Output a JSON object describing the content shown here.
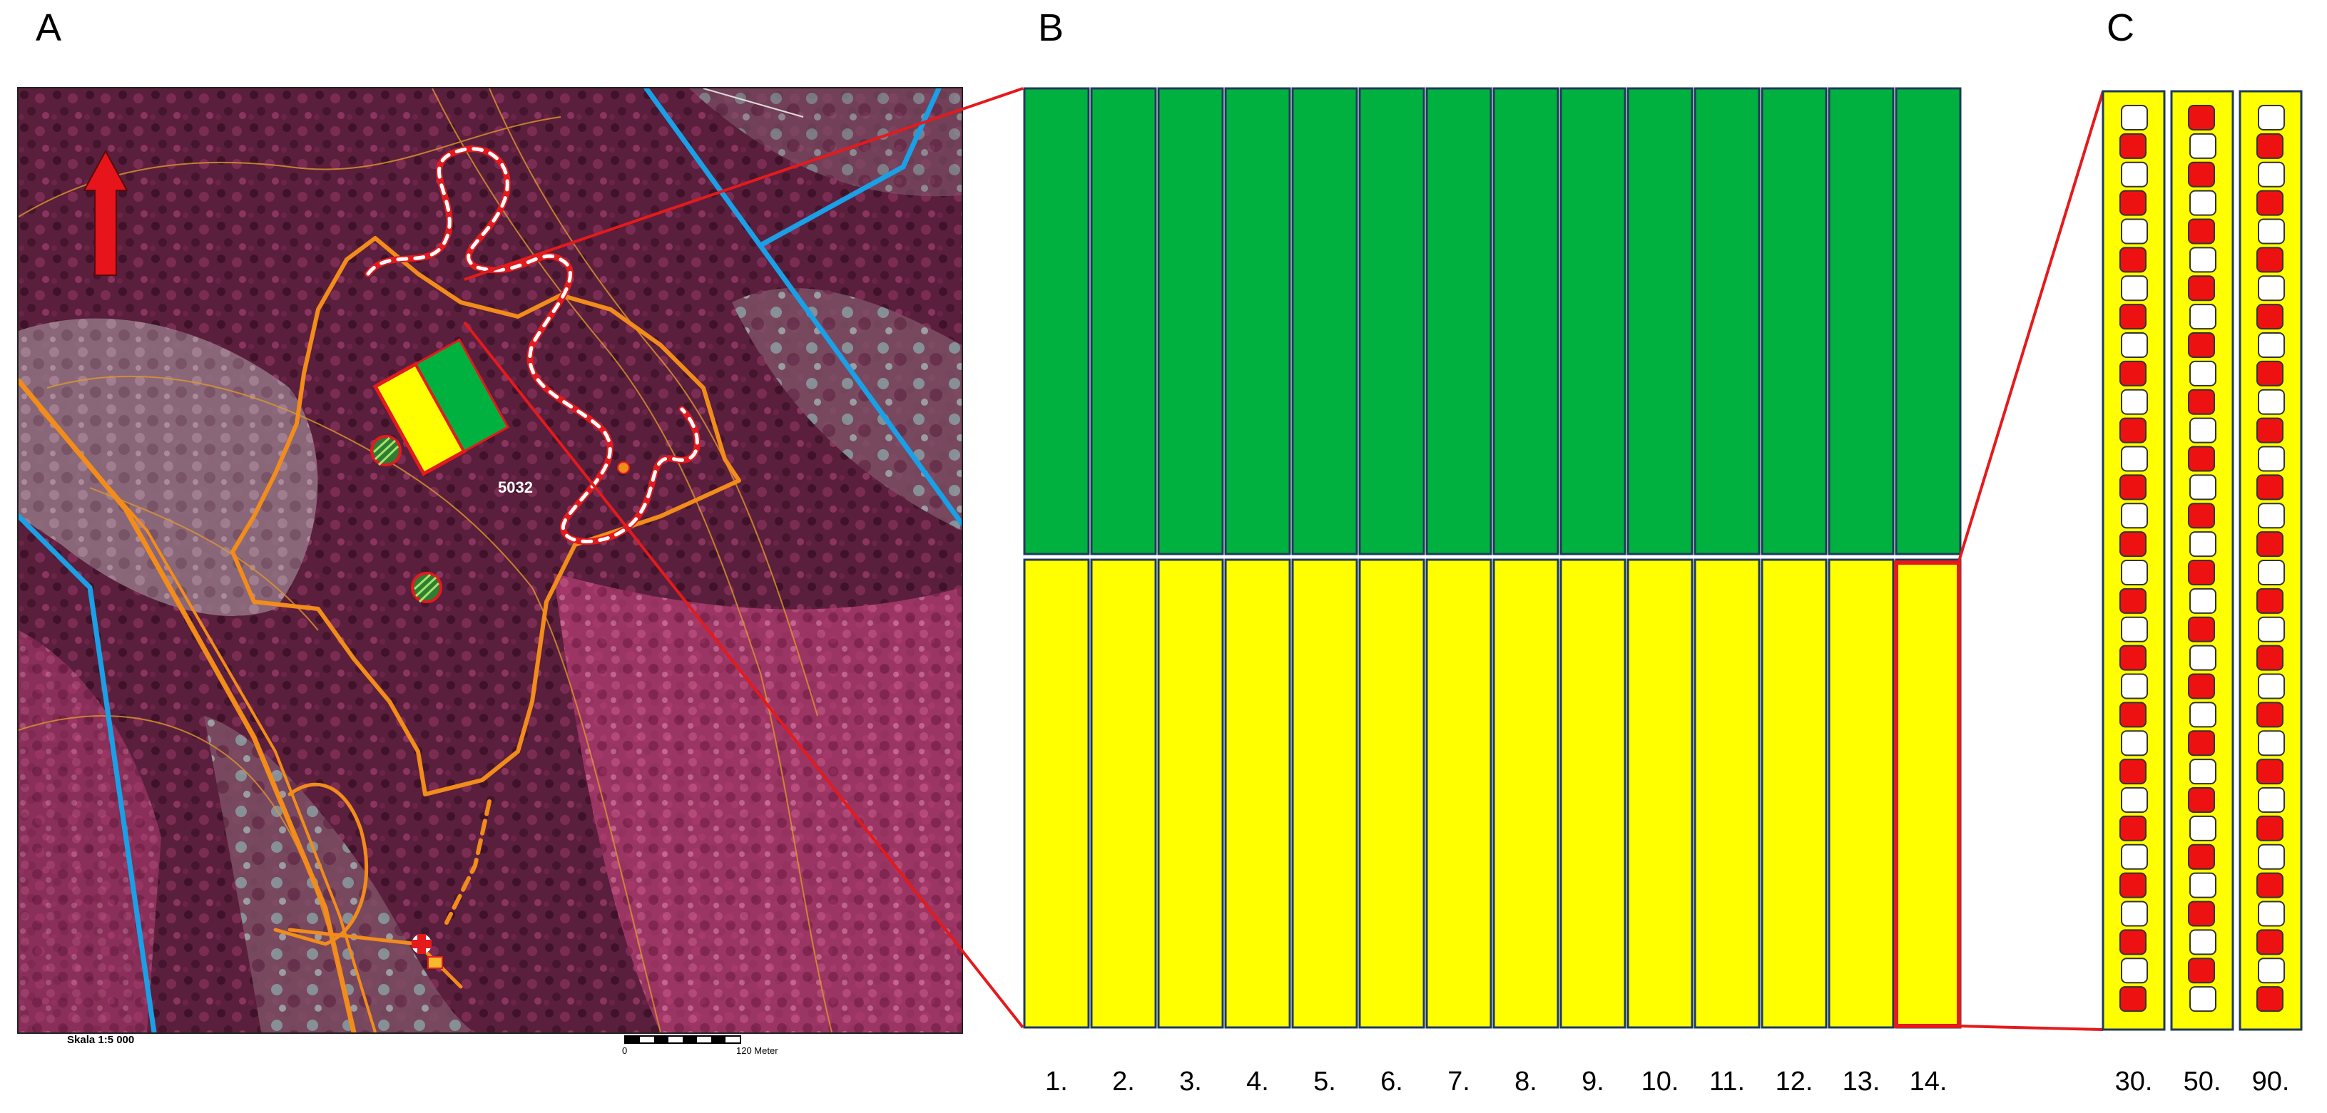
{
  "panels": {
    "a": "A",
    "b": "B",
    "c": "C"
  },
  "map": {
    "stand_id": "5032",
    "scale_text": "Skala   1:5 000",
    "scalebar_start": "0",
    "scalebar_end": "120 Meter",
    "north_arrow_color": "#e8141b"
  },
  "plot_grid": {
    "plot_labels": [
      "1.",
      "2.",
      "3.",
      "4.",
      "5.",
      "6.",
      "7.",
      "8.",
      "9.",
      "10.",
      "11.",
      "12.",
      "13.",
      "14."
    ],
    "upper_color": "#00b140",
    "lower_color": "#ffff00",
    "highlighted_plot": "14."
  },
  "subplots": {
    "labels": [
      "30.",
      "50.",
      "90."
    ],
    "fill_color": "#ffff00",
    "marker_red": "#ee1111",
    "marker_white": "#ffffff"
  },
  "colors": {
    "zoom_line": "#e41a1c",
    "stand_border": "#f28c1a",
    "water": "#1aa0e6"
  }
}
